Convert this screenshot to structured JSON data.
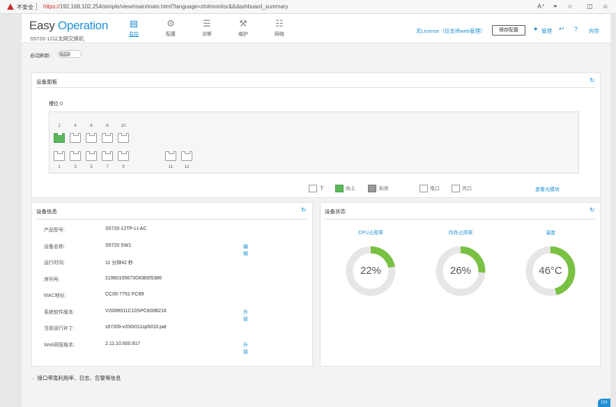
{
  "browser": {
    "warning": "不安全",
    "url_scheme": "https://",
    "url_rest": "192.168.102.254/simple/view/main/main.html?language=zh#monitor&&dashboard_summary",
    "icons": [
      "read-aloud-icon",
      "reader-icon",
      "favorite-icon",
      "collections-icon",
      "profile-icon"
    ]
  },
  "header": {
    "logo_easy": "Easy",
    "logo_operation": "Operation",
    "device_name": "S5720-12以太网交换机",
    "nav": [
      {
        "label": "监控",
        "icon": "monitor-icon",
        "active": true
      },
      {
        "label": "配置",
        "icon": "gear-icon",
        "active": false
      },
      {
        "label": "诊断",
        "icon": "sliders-icon",
        "active": false
      },
      {
        "label": "维护",
        "icon": "maintenance-icon",
        "active": false
      },
      {
        "label": "网络",
        "icon": "network-icon",
        "active": false
      }
    ],
    "license": "无License（仅支持web管理）",
    "save_button": "保存配置",
    "admin": "管理",
    "logout_icon": "logout-icon",
    "help": "?",
    "home": "向导"
  },
  "auto_refresh": {
    "label": "自动刷新:",
    "state": "关闭"
  },
  "device_panel": {
    "title": "设备面板",
    "slot": "槽位 0",
    "top_ports": [
      "2",
      "4",
      "6",
      "8",
      "10"
    ],
    "bottom_ports": [
      "1",
      "3",
      "5",
      "7",
      "9"
    ],
    "sfp_ports": [
      "11",
      "12"
    ],
    "up_ports": [
      "2"
    ],
    "legend": [
      {
        "label": "下",
        "kind": "down"
      },
      {
        "label": "向上",
        "kind": "up"
      },
      {
        "label": "关闭",
        "kind": "off"
      },
      {
        "label": "电口",
        "kind": "electric"
      },
      {
        "label": "光口",
        "kind": "optical"
      }
    ],
    "view_optical": "查看光模块"
  },
  "info_panel": {
    "title": "设备信息",
    "rows": [
      {
        "label": "产品型号:",
        "value": "S5720-12TP-LI-AC",
        "link": ""
      },
      {
        "label": "设备名称:",
        "value": "S5720 SW1",
        "link": "编辑"
      },
      {
        "label": "运行时间:",
        "value": "11 分钟42 秒",
        "link": ""
      },
      {
        "label": "序列号:",
        "value": "21980105673GKB005386",
        "link": ""
      },
      {
        "label": "MAC地址:",
        "value": "CC05-7751-FC89",
        "link": ""
      },
      {
        "label": "系统软件版本:",
        "value": "V200R011C10SPC600B216",
        "link": "升级"
      },
      {
        "label": "当前运行补丁:",
        "value": "s5720li-v200r011sph010.pat",
        "link": ""
      },
      {
        "label": "Web网管版本:",
        "value": "2.11.10.600.917",
        "link": "升级"
      }
    ]
  },
  "status_panel": {
    "title": "设备状态",
    "gauges": [
      {
        "label": "CPU占用率",
        "value": 22,
        "text": "22%"
      },
      {
        "label": "内存占用率",
        "value": 26,
        "text": "26%"
      },
      {
        "label": "温度",
        "value": 46,
        "text": "46°C"
      }
    ],
    "gauge_color": "#7ac143",
    "track_color": "#e6e6e6"
  },
  "footer": {
    "link": "接口带宽利用率、日志、告警等信息",
    "corner": "CH"
  }
}
